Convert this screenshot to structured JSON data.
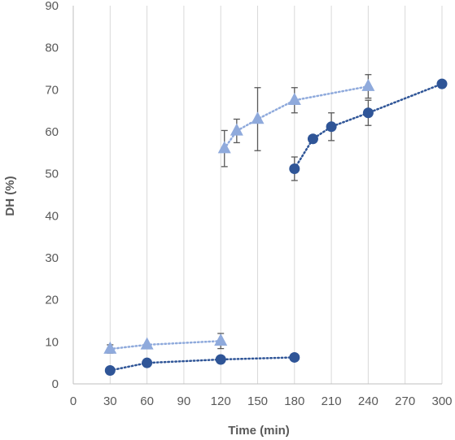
{
  "chart_data": {
    "type": "scatter",
    "title": "",
    "xlabel": "Time (min)",
    "ylabel": "DH (%)",
    "xlim": [
      0,
      300
    ],
    "ylim": [
      0,
      90
    ],
    "xticks": [
      0,
      30,
      60,
      90,
      120,
      150,
      180,
      210,
      240,
      270,
      300
    ],
    "yticks": [
      0,
      10,
      20,
      30,
      40,
      50,
      60,
      70,
      80,
      90
    ],
    "grid": "vertical",
    "legend": "none",
    "series": [
      {
        "marker": "circle",
        "color": "#2F5597",
        "line": "dotted",
        "segments": [
          [
            {
              "x": 30,
              "y": 3.2
            },
            {
              "x": 60,
              "y": 5.0
            },
            {
              "x": 120,
              "y": 5.8
            },
            {
              "x": 180,
              "y": 6.3
            }
          ],
          [
            {
              "x": 180,
              "y": 51.2,
              "err": 2.8
            },
            {
              "x": 195,
              "y": 58.3
            },
            {
              "x": 210,
              "y": 61.2,
              "err": 3.3
            },
            {
              "x": 240,
              "y": 64.5,
              "err": 3.0
            },
            {
              "x": 300,
              "y": 71.4
            }
          ]
        ]
      },
      {
        "marker": "triangle",
        "color": "#8FAADC",
        "line": "dotted",
        "segments": [
          [
            {
              "x": 30,
              "y": 8.3,
              "err": 1.0
            },
            {
              "x": 60,
              "y": 9.3
            },
            {
              "x": 120,
              "y": 10.2,
              "err": 1.8
            }
          ],
          [
            {
              "x": 123,
              "y": 56.0,
              "err": 4.3
            },
            {
              "x": 133,
              "y": 60.2,
              "err": 2.8
            },
            {
              "x": 150,
              "y": 63.0,
              "err": 7.5
            },
            {
              "x": 180,
              "y": 67.5,
              "err": 3.0
            },
            {
              "x": 240,
              "y": 70.8,
              "err": 2.8
            }
          ]
        ]
      }
    ]
  }
}
